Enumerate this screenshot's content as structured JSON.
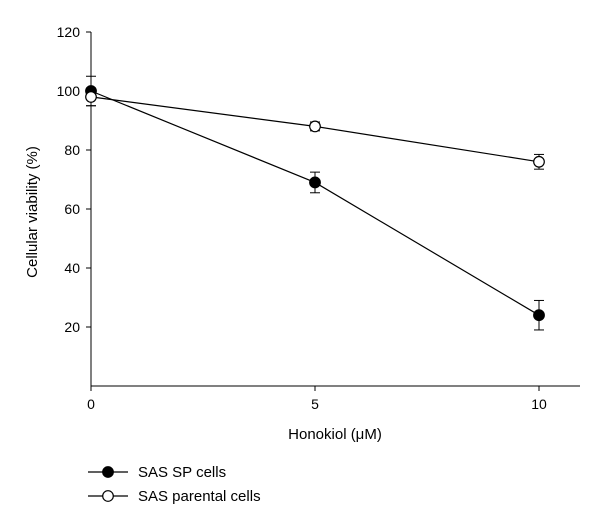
{
  "chart_data": {
    "type": "line",
    "title": "",
    "xlabel": "Honokiol (μM)",
    "ylabel": "Cellular viability (%)",
    "x": [
      0,
      5,
      10
    ],
    "x_ticks": [
      "0",
      "5",
      "10"
    ],
    "y_ticks": [
      "20",
      "40",
      "60",
      "80",
      "100",
      "120"
    ],
    "ylim": [
      0,
      120
    ],
    "xlim": [
      0,
      11
    ],
    "grid": false,
    "legend_position": "bottom-left",
    "series": [
      {
        "name": "SAS SP cells",
        "marker": "filled-circle",
        "values": [
          100,
          69,
          24
        ],
        "error": [
          5,
          3.5,
          5
        ]
      },
      {
        "name": "SAS parental cells",
        "marker": "open-circle",
        "values": [
          98,
          88,
          76
        ],
        "error": [
          3,
          1.5,
          2.5
        ]
      }
    ]
  }
}
